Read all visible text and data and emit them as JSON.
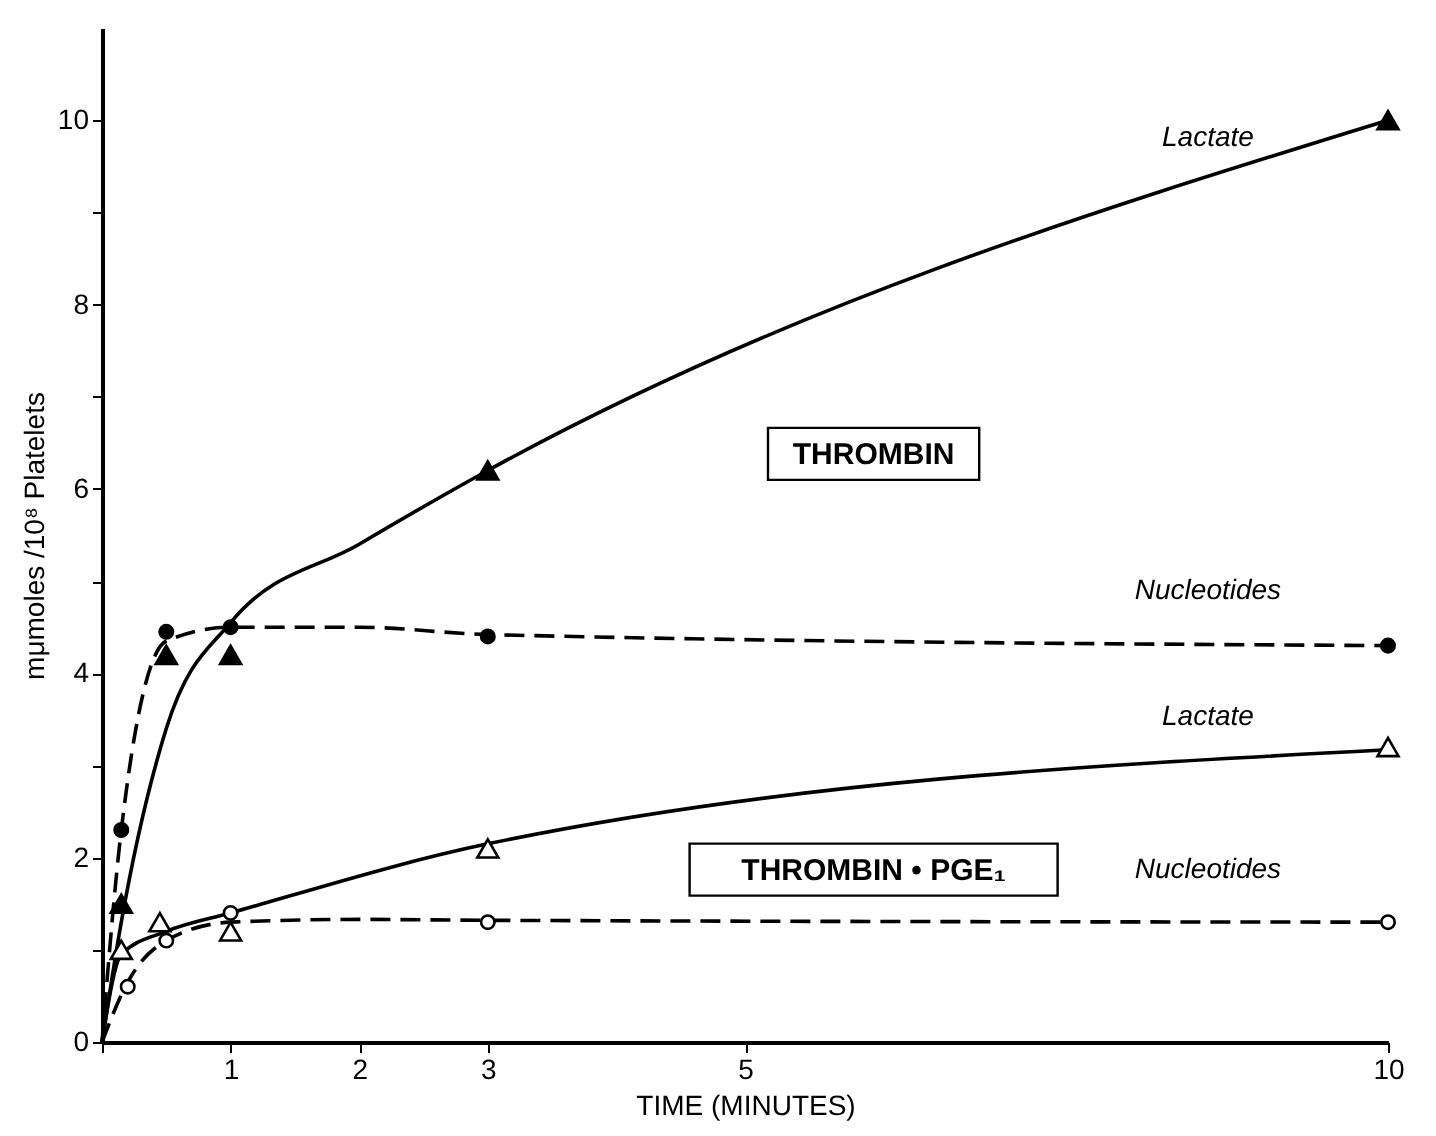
{
  "chart_data": {
    "type": "line",
    "xlabel": "TIME (MINUTES)",
    "ylabel": "mμmoles /10⁸ Platelets",
    "xlim": [
      0,
      10
    ],
    "ylim": [
      0,
      11
    ],
    "xticks": [
      {
        "value": 0,
        "label": null
      },
      1,
      2,
      3,
      5,
      10
    ],
    "yticks": [
      0,
      {
        "value": 1,
        "label": null
      },
      2,
      {
        "value": 3,
        "label": null
      },
      4,
      {
        "value": 5,
        "label": null
      },
      6,
      {
        "value": 7,
        "label": null
      },
      8,
      {
        "value": 9,
        "label": null
      },
      10
    ],
    "grid": false,
    "series": [
      {
        "type": "line",
        "name": "Lactate",
        "color": "#000000",
        "line_style": "solid",
        "x": [
          0,
          0.15,
          0.5,
          1,
          2,
          3,
          10
        ],
        "values": [
          0,
          1.3,
          3.4,
          4.55,
          5.4,
          6.2,
          10
        ]
      },
      {
        "type": "line",
        "name": "Nucleotides",
        "color": "#000000",
        "line_style": "dashed",
        "x": [
          0,
          0.15,
          0.5,
          1,
          2,
          3,
          10
        ],
        "values": [
          0,
          2.3,
          4.35,
          4.5,
          4.5,
          4.42,
          4.3
        ]
      },
      {
        "type": "line",
        "name": "Lactate",
        "color": "#000000",
        "line_style": "solid",
        "x": [
          0,
          0.15,
          0.5,
          1,
          3,
          10
        ],
        "values": [
          0,
          0.95,
          1.2,
          1.4,
          2.15,
          3.17
        ]
      },
      {
        "type": "line",
        "name": "Nucleotides",
        "color": "#000000",
        "line_style": "dashed",
        "x": [
          0,
          0.2,
          0.5,
          1,
          2,
          3,
          10
        ],
        "values": [
          0,
          0.65,
          1.1,
          1.3,
          1.33,
          1.32,
          1.3
        ]
      },
      {
        "type": "scatter",
        "marker": "triangle",
        "color": "#000000",
        "x": [
          0.15,
          0.5,
          1,
          3,
          10
        ],
        "values": [
          1.5,
          4.2,
          4.2,
          6.2,
          10
        ]
      },
      {
        "type": "scatter",
        "marker": "circle",
        "color": "#000000",
        "x": [
          0.15,
          0.5,
          1,
          3,
          10
        ],
        "values": [
          2.3,
          4.45,
          4.5,
          4.4,
          4.3
        ]
      },
      {
        "type": "scatter",
        "marker": "triangle",
        "color": "#ffffff",
        "x": [
          0.15,
          0.45,
          1,
          3,
          10
        ],
        "values": [
          1.0,
          1.3,
          1.2,
          2.1,
          3.2
        ]
      },
      {
        "type": "scatter",
        "marker": "circle",
        "color": "#ffffff",
        "x": [
          0.2,
          0.5,
          1,
          3,
          10
        ],
        "values": [
          0.6,
          1.1,
          1.4,
          1.3,
          1.3
        ]
      }
    ],
    "annotations": [
      "THROMBIN",
      "THROMBIN • PGE₁"
    ]
  }
}
